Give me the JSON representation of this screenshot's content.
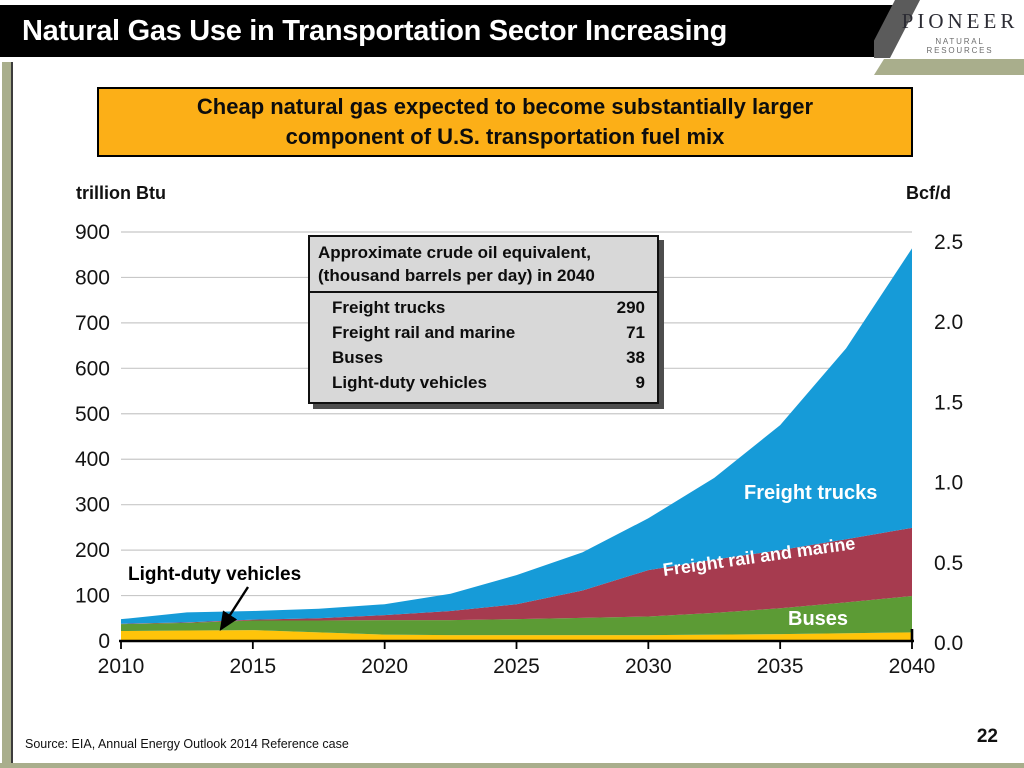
{
  "slide": {
    "title": "Natural Gas Use in Transportation Sector Increasing",
    "page_number": "22",
    "source": "Source:  EIA, Annual Energy Outlook 2014 Reference case"
  },
  "logo": {
    "name": "PIONEER",
    "subtitle": "NATURAL RESOURCES",
    "band_color": "#A9AE8C"
  },
  "callout": {
    "line1": "Cheap natural gas expected to become substantially larger",
    "line2": "component of U.S. transportation fuel mix",
    "bg_color": "#FCAF17"
  },
  "inset": {
    "title_line1": "Approximate crude oil equivalent,",
    "title_line2": "(thousand barrels per day) in 2040",
    "rows": [
      {
        "label": "Freight trucks",
        "value": "290"
      },
      {
        "label": "Freight rail and marine",
        "value": "71"
      },
      {
        "label": "Buses",
        "value": "38"
      },
      {
        "label": "Light-duty vehicles",
        "value": "9"
      }
    ]
  },
  "chart_data": {
    "type": "area",
    "stacked": true,
    "title": "",
    "xlabel": "",
    "left_axis": {
      "label": "trillion Btu",
      "ticks": [
        0,
        100,
        200,
        300,
        400,
        500,
        600,
        700,
        800,
        900
      ],
      "range": [
        0,
        900
      ]
    },
    "right_axis": {
      "label": "Bcf/d",
      "ticks": [
        "0.0",
        "0.5",
        "1.0",
        "1.5",
        "2.0",
        "2.5"
      ],
      "range": [
        0,
        2.5
      ]
    },
    "x_axis": {
      "ticks": [
        2010,
        2015,
        2020,
        2025,
        2030,
        2035,
        2040
      ],
      "range": [
        2010,
        2040
      ]
    },
    "grid": true,
    "x": [
      2010,
      2012.5,
      2015,
      2017.5,
      2020,
      2022.5,
      2025,
      2027.5,
      2030,
      2032.5,
      2035,
      2037.5,
      2040
    ],
    "series": [
      {
        "name": "Light-duty vehicles",
        "color": "#FFC40A",
        "values": [
          22,
          23,
          24,
          19,
          14,
          13,
          13,
          13,
          13,
          14,
          15,
          17,
          19
        ]
      },
      {
        "name": "Buses",
        "color": "#5C9B35",
        "values": [
          15,
          17,
          21,
          26,
          32,
          33,
          35,
          38,
          41,
          48,
          57,
          68,
          80
        ]
      },
      {
        "name": "Freight rail and marine",
        "color": "#A63B4F",
        "values": [
          1,
          1,
          2,
          5,
          11,
          20,
          33,
          60,
          102,
          117,
          128,
          139,
          150
        ]
      },
      {
        "name": "Freight trucks",
        "color": "#169BD8",
        "values": [
          10,
          22,
          19,
          21,
          24,
          38,
          64,
          84,
          114,
          180,
          275,
          420,
          615
        ]
      }
    ],
    "annotation": {
      "label": "Light-duty vehicles"
    }
  }
}
